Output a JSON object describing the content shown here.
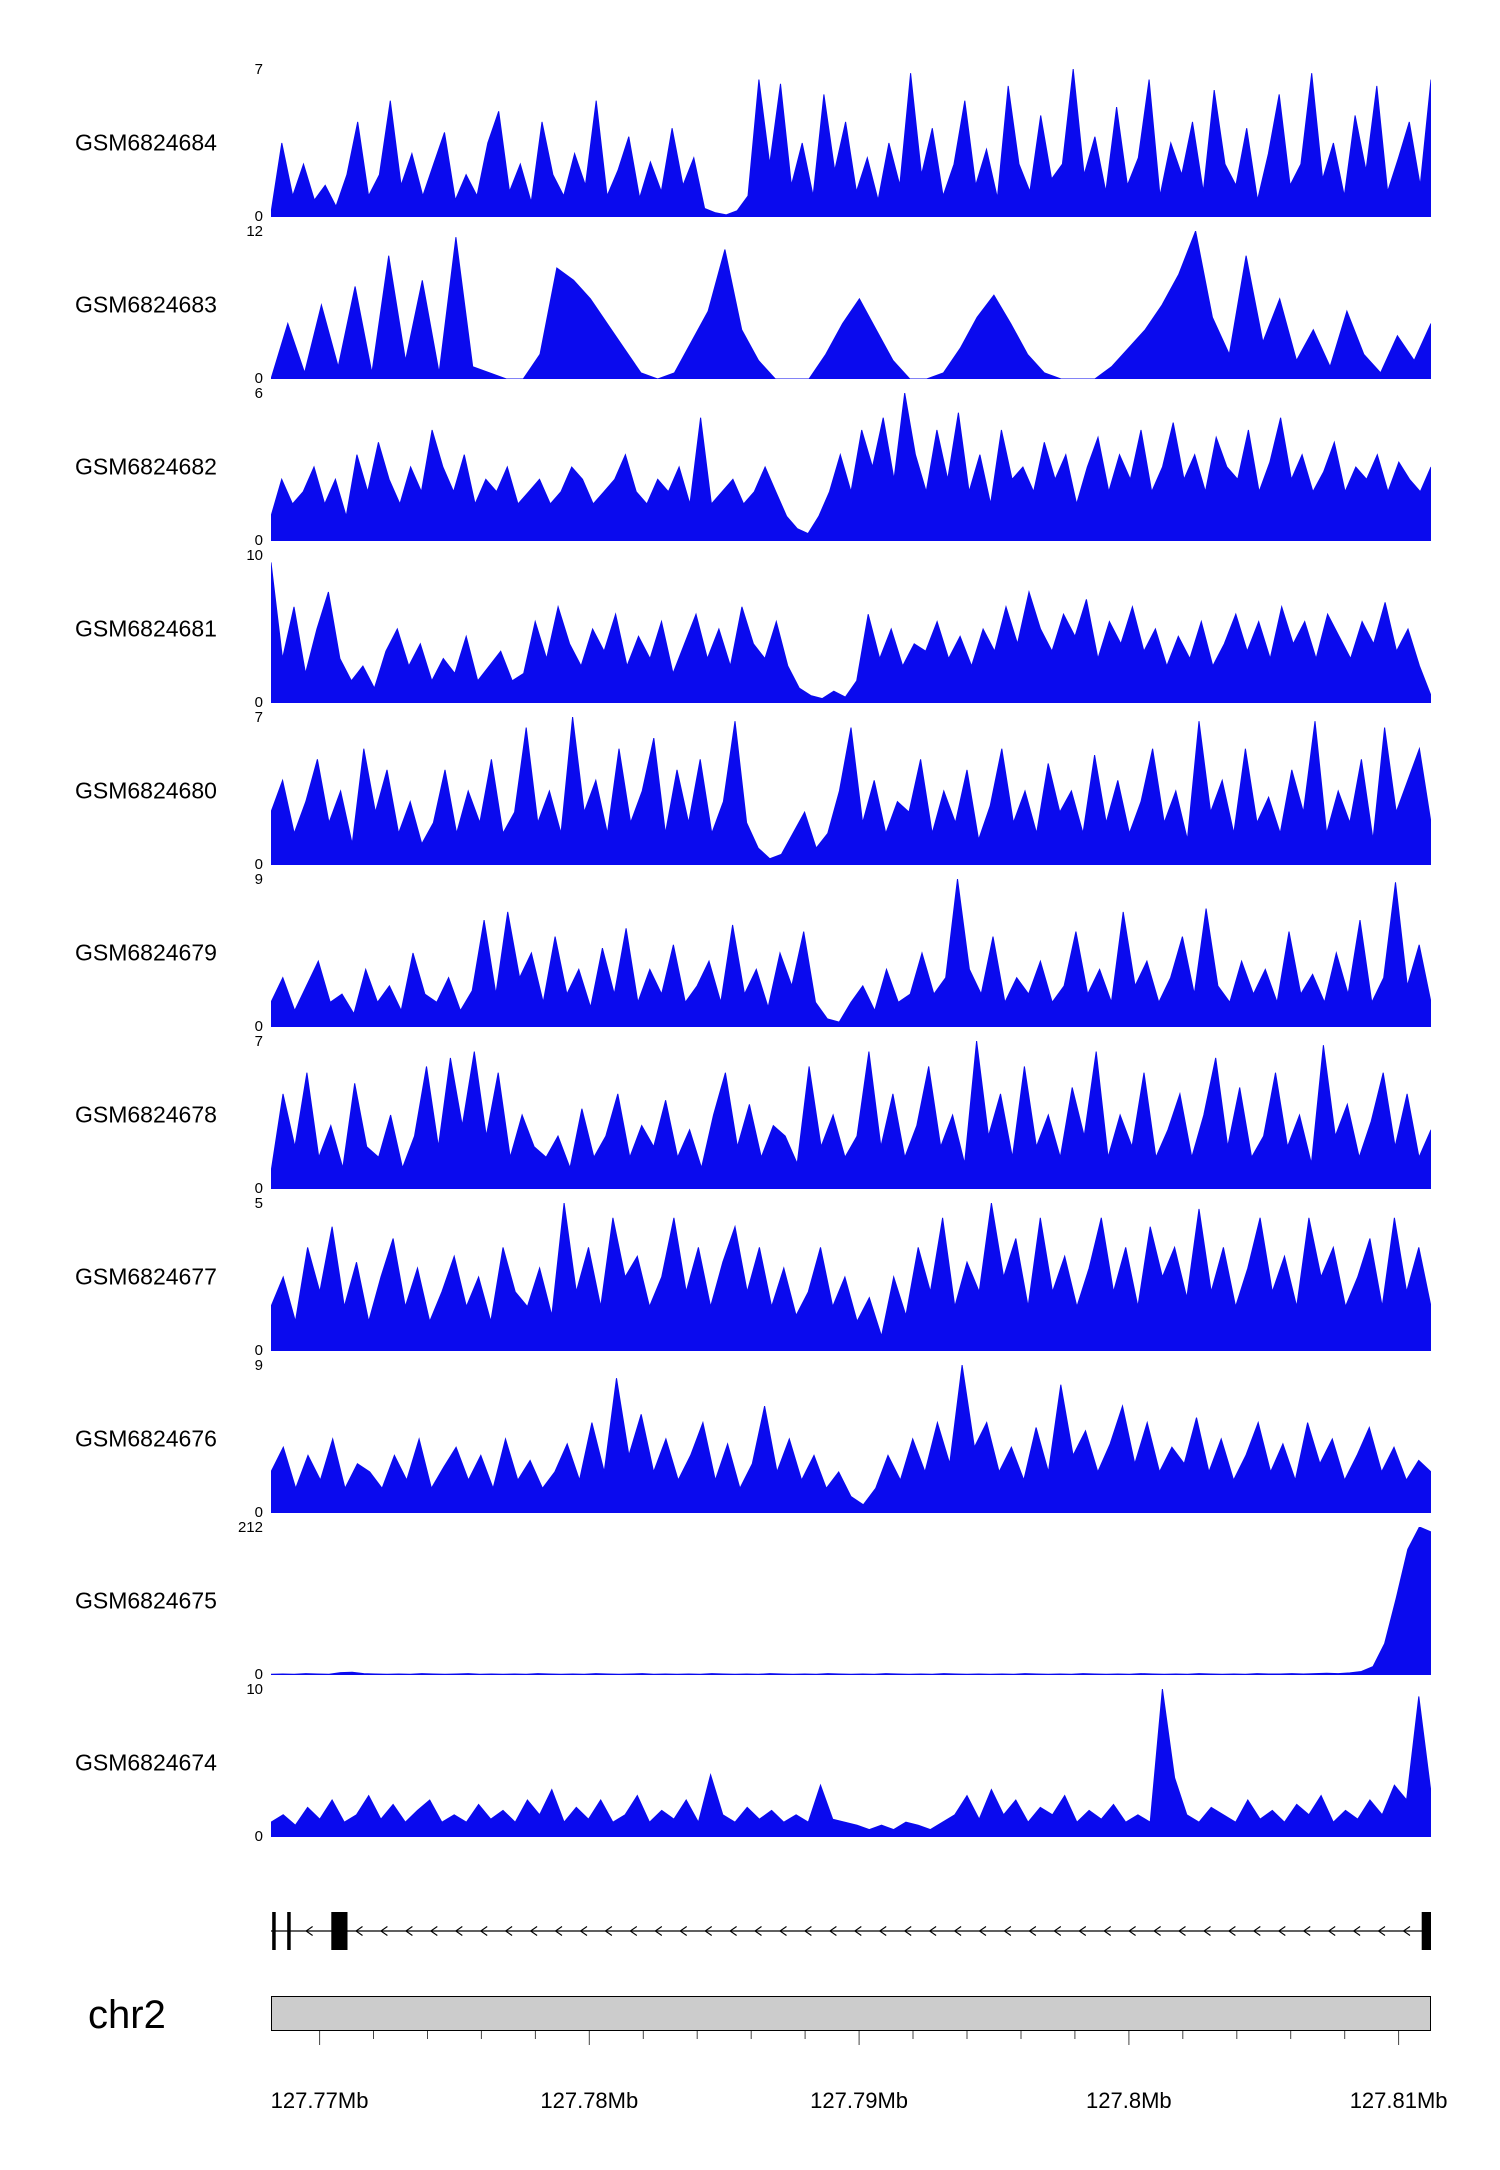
{
  "chart_data": {
    "type": "area",
    "fill_color": "#0a0aee",
    "region": {
      "chromosome": "chr2"
    },
    "x_axis": {
      "range_mb": [
        127.7682,
        127.8112
      ],
      "minor_tick_step_mb": 0.002,
      "ticks": [
        {
          "label": "127.77Mb",
          "value": 127.77
        },
        {
          "label": "127.78Mb",
          "value": 127.78
        },
        {
          "label": "127.79Mb",
          "value": 127.79
        },
        {
          "label": "127.8Mb",
          "value": 127.8
        },
        {
          "label": "127.81Mb",
          "value": 127.81
        }
      ]
    },
    "tracks": [
      {
        "label": "GSM6824684",
        "ymin": 0,
        "ymax": 7,
        "values": [
          0.2,
          3.5,
          1,
          2.5,
          0.8,
          1.5,
          0.5,
          2,
          4.5,
          1,
          2,
          5.5,
          1.5,
          3,
          1,
          2.5,
          4,
          0.8,
          2,
          1,
          3.5,
          5,
          1.2,
          2.5,
          0.7,
          4.5,
          2,
          1,
          3,
          1.5,
          5.5,
          1,
          2.2,
          3.8,
          0.9,
          2.6,
          1.2,
          4.2,
          1.5,
          2.8,
          0.4,
          0.2,
          0.1,
          0.3,
          1,
          6.5,
          2.5,
          6.3,
          1.5,
          3.5,
          1,
          5.8,
          2.2,
          4.5,
          1.2,
          2.8,
          0.8,
          3.5,
          1.5,
          6.8,
          2,
          4.2,
          1,
          2.5,
          5.5,
          1.5,
          3.2,
          0.9,
          6.2,
          2.5,
          1.2,
          4.8,
          1.8,
          2.5,
          7,
          2,
          3.8,
          1.2,
          5.2,
          1.5,
          2.8,
          6.5,
          1,
          3.5,
          2,
          4.5,
          1.2,
          6,
          2.5,
          1.5,
          4.2,
          0.8,
          3,
          5.8,
          1.5,
          2.5,
          6.8,
          1.8,
          3.5,
          1,
          4.8,
          2.2,
          6.2,
          1.2,
          2.8,
          4.5,
          1.5,
          6.5
        ]
      },
      {
        "label": "GSM6824683",
        "ymin": 0,
        "ymax": 12,
        "values": [
          0,
          4.5,
          0.5,
          6,
          1,
          7.5,
          0.5,
          10,
          1.5,
          8,
          0.5,
          11.5,
          1,
          0.5,
          0,
          0,
          2,
          9,
          8,
          6.5,
          4.5,
          2.5,
          0.5,
          0,
          0.5,
          3,
          5.5,
          10.5,
          4,
          1.5,
          0,
          0,
          0,
          2,
          4.5,
          6.5,
          4,
          1.5,
          0,
          0,
          0.5,
          2.5,
          5,
          6.8,
          4.5,
          2,
          0.5,
          0,
          0,
          0,
          1,
          2.5,
          4,
          6,
          8.5,
          12,
          5,
          2,
          10,
          3,
          6.5,
          1.5,
          4,
          1,
          5.5,
          2,
          0.5,
          3.5,
          1.5,
          4.5
        ]
      },
      {
        "label": "GSM6824682",
        "ymin": 0,
        "ymax": 6,
        "values": [
          1,
          2.5,
          1.5,
          2,
          3,
          1.5,
          2.5,
          1,
          3.5,
          2,
          4,
          2.5,
          1.5,
          3,
          2,
          4.5,
          3,
          2,
          3.5,
          1.5,
          2.5,
          2,
          3,
          1.5,
          2,
          2.5,
          1.5,
          2,
          3,
          2.5,
          1.5,
          2,
          2.5,
          3.5,
          2,
          1.5,
          2.5,
          2,
          3,
          1.5,
          5,
          1.5,
          2,
          2.5,
          1.5,
          2,
          3,
          2,
          1,
          0.5,
          0.3,
          1,
          2,
          3.5,
          2,
          4.5,
          3,
          5,
          2.5,
          6,
          3.5,
          2,
          4.5,
          2.5,
          5.2,
          2,
          3.5,
          1.5,
          4.5,
          2.5,
          3,
          2,
          4,
          2.5,
          3.5,
          1.5,
          3,
          4.2,
          2,
          3.5,
          2.5,
          4.5,
          2,
          3,
          4.8,
          2.5,
          3.5,
          2,
          4.2,
          3,
          2.5,
          4.5,
          2,
          3.2,
          5,
          2.5,
          3.5,
          2,
          2.8,
          4,
          2,
          3,
          2.5,
          3.5,
          2,
          3.2,
          2.5,
          2,
          3
        ]
      },
      {
        "label": "GSM6824681",
        "ymin": 0,
        "ymax": 10,
        "values": [
          9.5,
          3,
          6.5,
          2,
          5,
          7.5,
          3,
          1.5,
          2.5,
          1,
          3.5,
          5,
          2.5,
          4,
          1.5,
          3,
          2,
          4.5,
          1.5,
          2.5,
          3.5,
          1.5,
          2,
          5.5,
          3,
          6.5,
          4,
          2.5,
          5,
          3.5,
          6,
          2.5,
          4.5,
          3,
          5.5,
          2,
          4,
          6,
          3,
          5,
          2.5,
          6.5,
          4,
          3,
          5.5,
          2.5,
          1,
          0.5,
          0.3,
          0.8,
          0.4,
          1.5,
          6,
          3,
          5,
          2.5,
          4,
          3.5,
          5.5,
          3,
          4.5,
          2.5,
          5,
          3.5,
          6.5,
          4,
          7.5,
          5,
          3.5,
          6,
          4.5,
          7,
          3,
          5.5,
          4,
          6.5,
          3.5,
          5,
          2.5,
          4.5,
          3,
          5.5,
          2.5,
          4,
          6,
          3.5,
          5.5,
          3,
          6.5,
          4,
          5.5,
          3,
          6,
          4.5,
          3,
          5.5,
          4,
          6.8,
          3.5,
          5,
          2.5,
          0.5
        ]
      },
      {
        "label": "GSM6824680",
        "ymin": 0,
        "ymax": 7,
        "values": [
          2.5,
          4,
          1.5,
          3,
          5,
          2,
          3.5,
          1,
          5.5,
          2.5,
          4.5,
          1.5,
          3,
          1,
          2,
          4.5,
          1.5,
          3.5,
          2,
          5,
          1.5,
          2.5,
          6.5,
          2,
          3.5,
          1.5,
          7,
          2.5,
          4,
          1.5,
          5.5,
          2,
          3.5,
          6,
          1.5,
          4.5,
          2,
          5,
          1.5,
          3,
          6.8,
          2,
          0.8,
          0.3,
          0.5,
          1.5,
          2.5,
          0.8,
          1.5,
          3.5,
          6.5,
          2,
          4,
          1.5,
          3,
          2.5,
          5,
          1.5,
          3.5,
          2,
          4.5,
          1.2,
          2.8,
          5.5,
          2,
          3.5,
          1.5,
          4.8,
          2.5,
          3.5,
          1.5,
          5.2,
          2,
          4,
          1.5,
          3,
          5.5,
          2,
          3.5,
          1.2,
          6.8,
          2.5,
          4,
          1.5,
          5.5,
          2,
          3.2,
          1.5,
          4.5,
          2.5,
          6.8,
          1.5,
          3.5,
          2,
          5,
          1.2,
          6.5,
          2.5,
          4,
          5.5,
          2
        ]
      },
      {
        "label": "GSM6824679",
        "ymin": 0,
        "ymax": 9,
        "values": [
          1.5,
          3,
          1,
          2.5,
          4,
          1.5,
          2,
          0.8,
          3.5,
          1.5,
          2.5,
          1,
          4.5,
          2,
          1.5,
          3,
          1,
          2.2,
          6.5,
          2,
          7,
          3,
          4.5,
          1.5,
          5.5,
          2,
          3.5,
          1.2,
          4.8,
          2,
          6,
          1.5,
          3.5,
          2,
          5,
          1.5,
          2.5,
          4,
          1.5,
          6.2,
          2,
          3.5,
          1.2,
          4.5,
          2.5,
          5.8,
          1.5,
          0.5,
          0.3,
          1.5,
          2.5,
          1,
          3.5,
          1.5,
          2,
          4.5,
          2,
          3,
          9,
          3.5,
          2,
          5.5,
          1.5,
          3,
          2,
          4,
          1.5,
          2.5,
          5.8,
          2,
          3.5,
          1.5,
          7,
          2.5,
          4,
          1.5,
          3,
          5.5,
          2,
          7.2,
          2.5,
          1.5,
          4,
          2,
          3.5,
          1.5,
          5.8,
          2,
          3.2,
          1.5,
          4.5,
          2,
          6.5,
          1.5,
          3,
          8.8,
          2.5,
          5,
          1.5
        ]
      },
      {
        "label": "GSM6824678",
        "ymin": 0,
        "ymax": 7,
        "values": [
          0.8,
          4.5,
          2,
          5.5,
          1.5,
          3,
          1,
          5,
          2,
          1.5,
          3.5,
          1,
          2.5,
          5.8,
          2,
          6.2,
          3,
          6.5,
          2.5,
          5.5,
          1.5,
          3.5,
          2,
          1.5,
          2.5,
          1,
          3.8,
          1.5,
          2.5,
          4.5,
          1.5,
          3,
          2,
          4.2,
          1.5,
          2.8,
          1,
          3.5,
          5.5,
          2,
          4,
          1.5,
          3,
          2.5,
          1.2,
          5.8,
          2,
          3.5,
          1.5,
          2.5,
          6.5,
          2,
          4.5,
          1.5,
          3,
          5.8,
          2,
          3.5,
          1.2,
          7,
          2.5,
          4.5,
          1.5,
          5.8,
          2,
          3.5,
          1.5,
          4.8,
          2.5,
          6.5,
          1.5,
          3.5,
          2,
          5.5,
          1.5,
          2.8,
          4.5,
          1.5,
          3.5,
          6.2,
          2,
          4.8,
          1.5,
          2.5,
          5.5,
          2,
          3.5,
          1.2,
          6.8,
          2.5,
          4,
          1.5,
          3.2,
          5.5,
          2,
          4.5,
          1.5,
          2.8
        ]
      },
      {
        "label": "GSM6824677",
        "ymin": 0,
        "ymax": 5,
        "values": [
          1.5,
          2.5,
          1,
          3.5,
          2,
          4.2,
          1.5,
          3,
          1,
          2.5,
          3.8,
          1.5,
          2.8,
          1,
          2,
          3.2,
          1.5,
          2.5,
          1,
          3.5,
          2,
          1.5,
          2.8,
          1.2,
          5,
          2,
          3.5,
          1.5,
          4.5,
          2.5,
          3.2,
          1.5,
          2.5,
          4.5,
          2,
          3.5,
          1.5,
          3,
          4.2,
          2,
          3.5,
          1.5,
          2.8,
          1.2,
          2,
          3.5,
          1.5,
          2.5,
          1,
          1.8,
          0.5,
          2.5,
          1.2,
          3.5,
          2,
          4.5,
          1.5,
          3,
          2,
          5,
          2.5,
          3.8,
          1.5,
          4.5,
          2,
          3.2,
          1.5,
          2.8,
          4.5,
          2,
          3.5,
          1.5,
          4.2,
          2.5,
          3.5,
          1.8,
          4.8,
          2,
          3.5,
          1.5,
          2.8,
          4.5,
          2,
          3.2,
          1.5,
          4.5,
          2.5,
          3.5,
          1.5,
          2.5,
          3.8,
          1.5,
          4.5,
          2,
          3.5,
          1.5
        ]
      },
      {
        "label": "GSM6824676",
        "ymin": 0,
        "ymax": 9,
        "values": [
          2.5,
          4,
          1.5,
          3.5,
          2,
          4.5,
          1.5,
          3,
          2.5,
          1.5,
          3.5,
          2,
          4.5,
          1.5,
          2.8,
          4,
          2,
          3.5,
          1.5,
          4.5,
          2,
          3.2,
          1.5,
          2.5,
          4.2,
          2,
          5.5,
          2.5,
          8.2,
          3.5,
          6,
          2.5,
          4.5,
          2,
          3.5,
          5.5,
          2,
          4.2,
          1.5,
          3,
          6.5,
          2.5,
          4.5,
          2,
          3.5,
          1.5,
          2.5,
          1,
          0.5,
          1.5,
          3.5,
          2,
          4.5,
          2.5,
          5.5,
          3,
          9,
          4,
          5.5,
          2.5,
          4,
          2,
          5.2,
          2.5,
          7.8,
          3.5,
          5,
          2.5,
          4.2,
          6.5,
          3,
          5.5,
          2.5,
          4,
          3,
          5.8,
          2.5,
          4.5,
          2,
          3.5,
          5.5,
          2.5,
          4.2,
          2,
          5.5,
          3,
          4.5,
          2,
          3.5,
          5.2,
          2.5,
          4,
          2,
          3.2,
          2.5
        ]
      },
      {
        "label": "GSM6824675",
        "ymin": 0,
        "ymax": 212,
        "values": [
          1,
          1.5,
          1,
          2,
          1.5,
          1,
          3.5,
          4,
          2,
          1.5,
          1,
          1.5,
          1,
          2,
          1.5,
          1,
          1.5,
          2,
          1,
          1.5,
          1,
          1.5,
          1,
          2,
          1.5,
          1,
          1.5,
          1,
          2,
          1.5,
          1,
          1.5,
          2,
          1,
          1.5,
          1,
          1.5,
          1,
          2,
          1.5,
          1,
          1.5,
          1,
          2,
          1.5,
          1,
          1.5,
          1,
          2,
          1.5,
          1,
          1.5,
          1,
          2,
          1.5,
          1,
          1.5,
          1,
          2,
          1.5,
          1,
          1.5,
          1,
          1.5,
          1,
          2,
          1.5,
          1,
          1.5,
          1,
          2,
          1.5,
          1,
          1.5,
          1,
          2,
          1.5,
          1,
          1.5,
          1,
          2,
          1.5,
          1,
          1.5,
          1,
          2,
          1.5,
          1.5,
          2,
          1.5,
          2,
          2.5,
          2,
          3,
          5,
          12,
          45,
          110,
          180,
          212,
          205
        ]
      },
      {
        "label": "GSM6824674",
        "ymin": 0,
        "ymax": 10,
        "values": [
          1,
          1.5,
          0.8,
          2,
          1.2,
          2.5,
          1,
          1.5,
          2.8,
          1.2,
          2.2,
          1,
          1.8,
          2.5,
          1,
          1.5,
          1,
          2.2,
          1.2,
          1.8,
          1,
          2.5,
          1.5,
          3.2,
          1,
          2,
          1.2,
          2.5,
          1,
          1.5,
          2.8,
          1,
          1.8,
          1.2,
          2.5,
          1,
          4.2,
          1.5,
          1,
          2,
          1.2,
          1.8,
          1,
          1.5,
          1,
          3.5,
          1.2,
          1,
          0.8,
          0.5,
          0.8,
          0.5,
          1,
          0.8,
          0.5,
          1,
          1.5,
          2.8,
          1.2,
          3.2,
          1.5,
          2.5,
          1,
          2,
          1.5,
          2.8,
          1,
          1.8,
          1.2,
          2.2,
          1,
          1.5,
          1,
          10,
          4,
          1.5,
          1,
          2,
          1.5,
          1,
          2.5,
          1.2,
          1.8,
          1,
          2.2,
          1.5,
          2.8,
          1,
          1.8,
          1.2,
          2.5,
          1.5,
          3.5,
          2.5,
          9.5,
          3
        ]
      }
    ],
    "gene_track": {
      "direction": "left",
      "exons": [
        {
          "start": 0.001,
          "end": 0.004,
          "kind": "thin"
        },
        {
          "start": 0.014,
          "end": 0.017,
          "kind": "thin"
        },
        {
          "start": 0.052,
          "end": 0.066,
          "kind": "thick"
        },
        {
          "start": 0.992,
          "end": 1.0,
          "kind": "thick"
        }
      ],
      "arrow_start": 0.032,
      "arrow_end": 0.988,
      "arrow_step": 0.0215
    },
    "ideogram": {
      "fill": "#cccccc",
      "border": "#000000"
    }
  }
}
